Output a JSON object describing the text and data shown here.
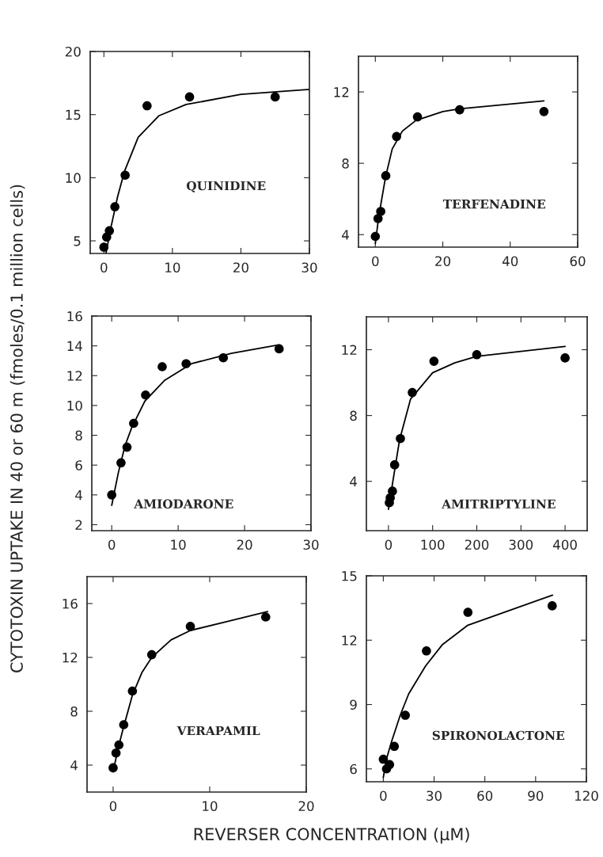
{
  "chart_data": [
    {
      "type": "scatter",
      "ylabel": "CYTOTOXIN UPTAKE IN 40 or 60 m (fmoles/0.1 million cells)",
      "xlabel": "REVERSER CONCENTRATION (μM)",
      "annotations": [
        "QUINIDINE"
      ],
      "xlim": [
        -2,
        30
      ],
      "xticks": [
        0,
        10,
        20,
        30
      ],
      "ylim": [
        4,
        20
      ],
      "yticks": [
        5,
        10,
        15,
        20
      ],
      "grid": false,
      "legend": false,
      "series": [
        {
          "type": "scatter",
          "marker": "circle",
          "color": "#000000",
          "x": [
            0,
            0.4,
            0.8,
            1.6,
            3.1,
            6.3,
            12.5,
            25
          ],
          "values": [
            4.5,
            5.3,
            5.8,
            7.7,
            10.2,
            15.7,
            16.4,
            16.4
          ]
        },
        {
          "type": "line",
          "line_style": "solid",
          "color": "#000000",
          "x": [
            0.3,
            1,
            2,
            3,
            5,
            8,
            12,
            20,
            30
          ],
          "values": [
            4.0,
            6.0,
            8.5,
            10.5,
            13.2,
            14.9,
            15.8,
            16.6,
            17.0
          ]
        }
      ]
    },
    {
      "type": "scatter",
      "annotations": [
        "TERFENADINE"
      ],
      "xlim": [
        -5,
        60
      ],
      "xticks": [
        0,
        20,
        40,
        60
      ],
      "ylim": [
        3.3,
        14
      ],
      "yticks": [
        4,
        8,
        12
      ],
      "grid": false,
      "legend": false,
      "series": [
        {
          "type": "scatter",
          "marker": "circle",
          "color": "#000000",
          "x": [
            0,
            0.8,
            1.6,
            3.1,
            6.3,
            12.5,
            25,
            50
          ],
          "values": [
            3.9,
            4.9,
            5.3,
            7.3,
            9.5,
            10.6,
            11.0,
            10.9
          ]
        },
        {
          "type": "line",
          "line_style": "solid",
          "color": "#000000",
          "x": [
            0,
            1,
            3,
            5,
            8,
            12,
            20,
            25,
            50
          ],
          "values": [
            3.5,
            5.0,
            7.2,
            8.8,
            9.8,
            10.4,
            10.9,
            11.05,
            11.5
          ]
        }
      ]
    },
    {
      "type": "scatter",
      "annotations": [
        "AMIODARONE"
      ],
      "xlim": [
        -3,
        30
      ],
      "xticks": [
        0,
        10,
        20,
        30
      ],
      "ylim": [
        1.6,
        16
      ],
      "yticks": [
        2,
        4,
        6,
        8,
        10,
        12,
        14,
        16
      ],
      "grid": false,
      "legend": false,
      "series": [
        {
          "type": "scatter",
          "marker": "circle",
          "color": "#000000",
          "x": [
            0,
            1.4,
            2.3,
            3.3,
            5.1,
            7.6,
            11.2,
            16.8,
            25.2
          ],
          "values": [
            4.0,
            6.15,
            7.2,
            8.8,
            10.7,
            12.6,
            12.8,
            13.2,
            13.8
          ]
        },
        {
          "type": "line",
          "line_style": "solid",
          "color": "#000000",
          "x": [
            0,
            1,
            2,
            3,
            5,
            8,
            12,
            18,
            25
          ],
          "values": [
            3.3,
            5.5,
            7.3,
            8.5,
            10.3,
            11.7,
            12.8,
            13.5,
            14.05
          ]
        }
      ]
    },
    {
      "type": "scatter",
      "annotations": [
        "AMITRIPTYLINE"
      ],
      "xlim": [
        -50,
        450
      ],
      "xticks": [
        0,
        100,
        200,
        300,
        400
      ],
      "ylim": [
        1,
        14
      ],
      "yticks": [
        4,
        8,
        12
      ],
      "grid": false,
      "legend": false,
      "series": [
        {
          "type": "scatter",
          "marker": "circle",
          "color": "#000000",
          "x": [
            2,
            4,
            9,
            14,
            27,
            54,
            103,
            200,
            400
          ],
          "values": [
            2.7,
            3.0,
            3.4,
            5.0,
            6.6,
            9.4,
            11.3,
            11.7,
            11.5
          ]
        },
        {
          "type": "line",
          "line_style": "solid",
          "color": "#000000",
          "x": [
            0,
            10,
            25,
            50,
            100,
            150,
            200,
            300,
            400
          ],
          "values": [
            2.3,
            4.0,
            6.5,
            9.0,
            10.6,
            11.2,
            11.6,
            11.9,
            12.2
          ]
        }
      ]
    },
    {
      "type": "scatter",
      "annotations": [
        "VERAPAMIL"
      ],
      "xlim": [
        -2.7,
        20
      ],
      "xticks": [
        0,
        10,
        20
      ],
      "ylim": [
        2,
        18
      ],
      "yticks": [
        4,
        8,
        12,
        16
      ],
      "grid": false,
      "legend": false,
      "series": [
        {
          "type": "scatter",
          "marker": "circle",
          "color": "#000000",
          "x": [
            0,
            0.3,
            0.6,
            1.1,
            2.0,
            4.0,
            8.0,
            15.8
          ],
          "values": [
            3.8,
            4.9,
            5.5,
            7.0,
            9.5,
            12.2,
            14.3,
            15.0
          ]
        },
        {
          "type": "line",
          "line_style": "solid",
          "color": "#000000",
          "x": [
            0,
            0.5,
            1,
            2,
            3,
            4,
            6,
            8,
            12,
            16
          ],
          "values": [
            3.5,
            5.2,
            6.6,
            9.2,
            10.9,
            12.0,
            13.3,
            14.0,
            14.7,
            15.4
          ]
        }
      ]
    },
    {
      "type": "scatter",
      "annotations": [
        "SPIRONOLACTONE"
      ],
      "xlim": [
        -10,
        120
      ],
      "xticks": [
        0,
        30,
        60,
        90,
        120
      ],
      "ylim": [
        5.4,
        15
      ],
      "yticks": [
        6,
        9,
        12,
        15
      ],
      "grid": false,
      "legend": false,
      "series": [
        {
          "type": "scatter",
          "marker": "circle",
          "color": "#000000",
          "x": [
            0,
            1.9,
            3.7,
            6.5,
            13,
            25.5,
            50,
            99.8
          ],
          "values": [
            6.45,
            6.0,
            6.2,
            7.05,
            8.5,
            11.5,
            13.3,
            13.6
          ]
        },
        {
          "type": "line",
          "line_style": "solid",
          "color": "#000000",
          "x": [
            0,
            2,
            5,
            10,
            15,
            25,
            35,
            50,
            75,
            100
          ],
          "values": [
            5.6,
            6.5,
            7.3,
            8.5,
            9.5,
            10.8,
            11.8,
            12.7,
            13.4,
            14.1
          ]
        }
      ]
    }
  ]
}
